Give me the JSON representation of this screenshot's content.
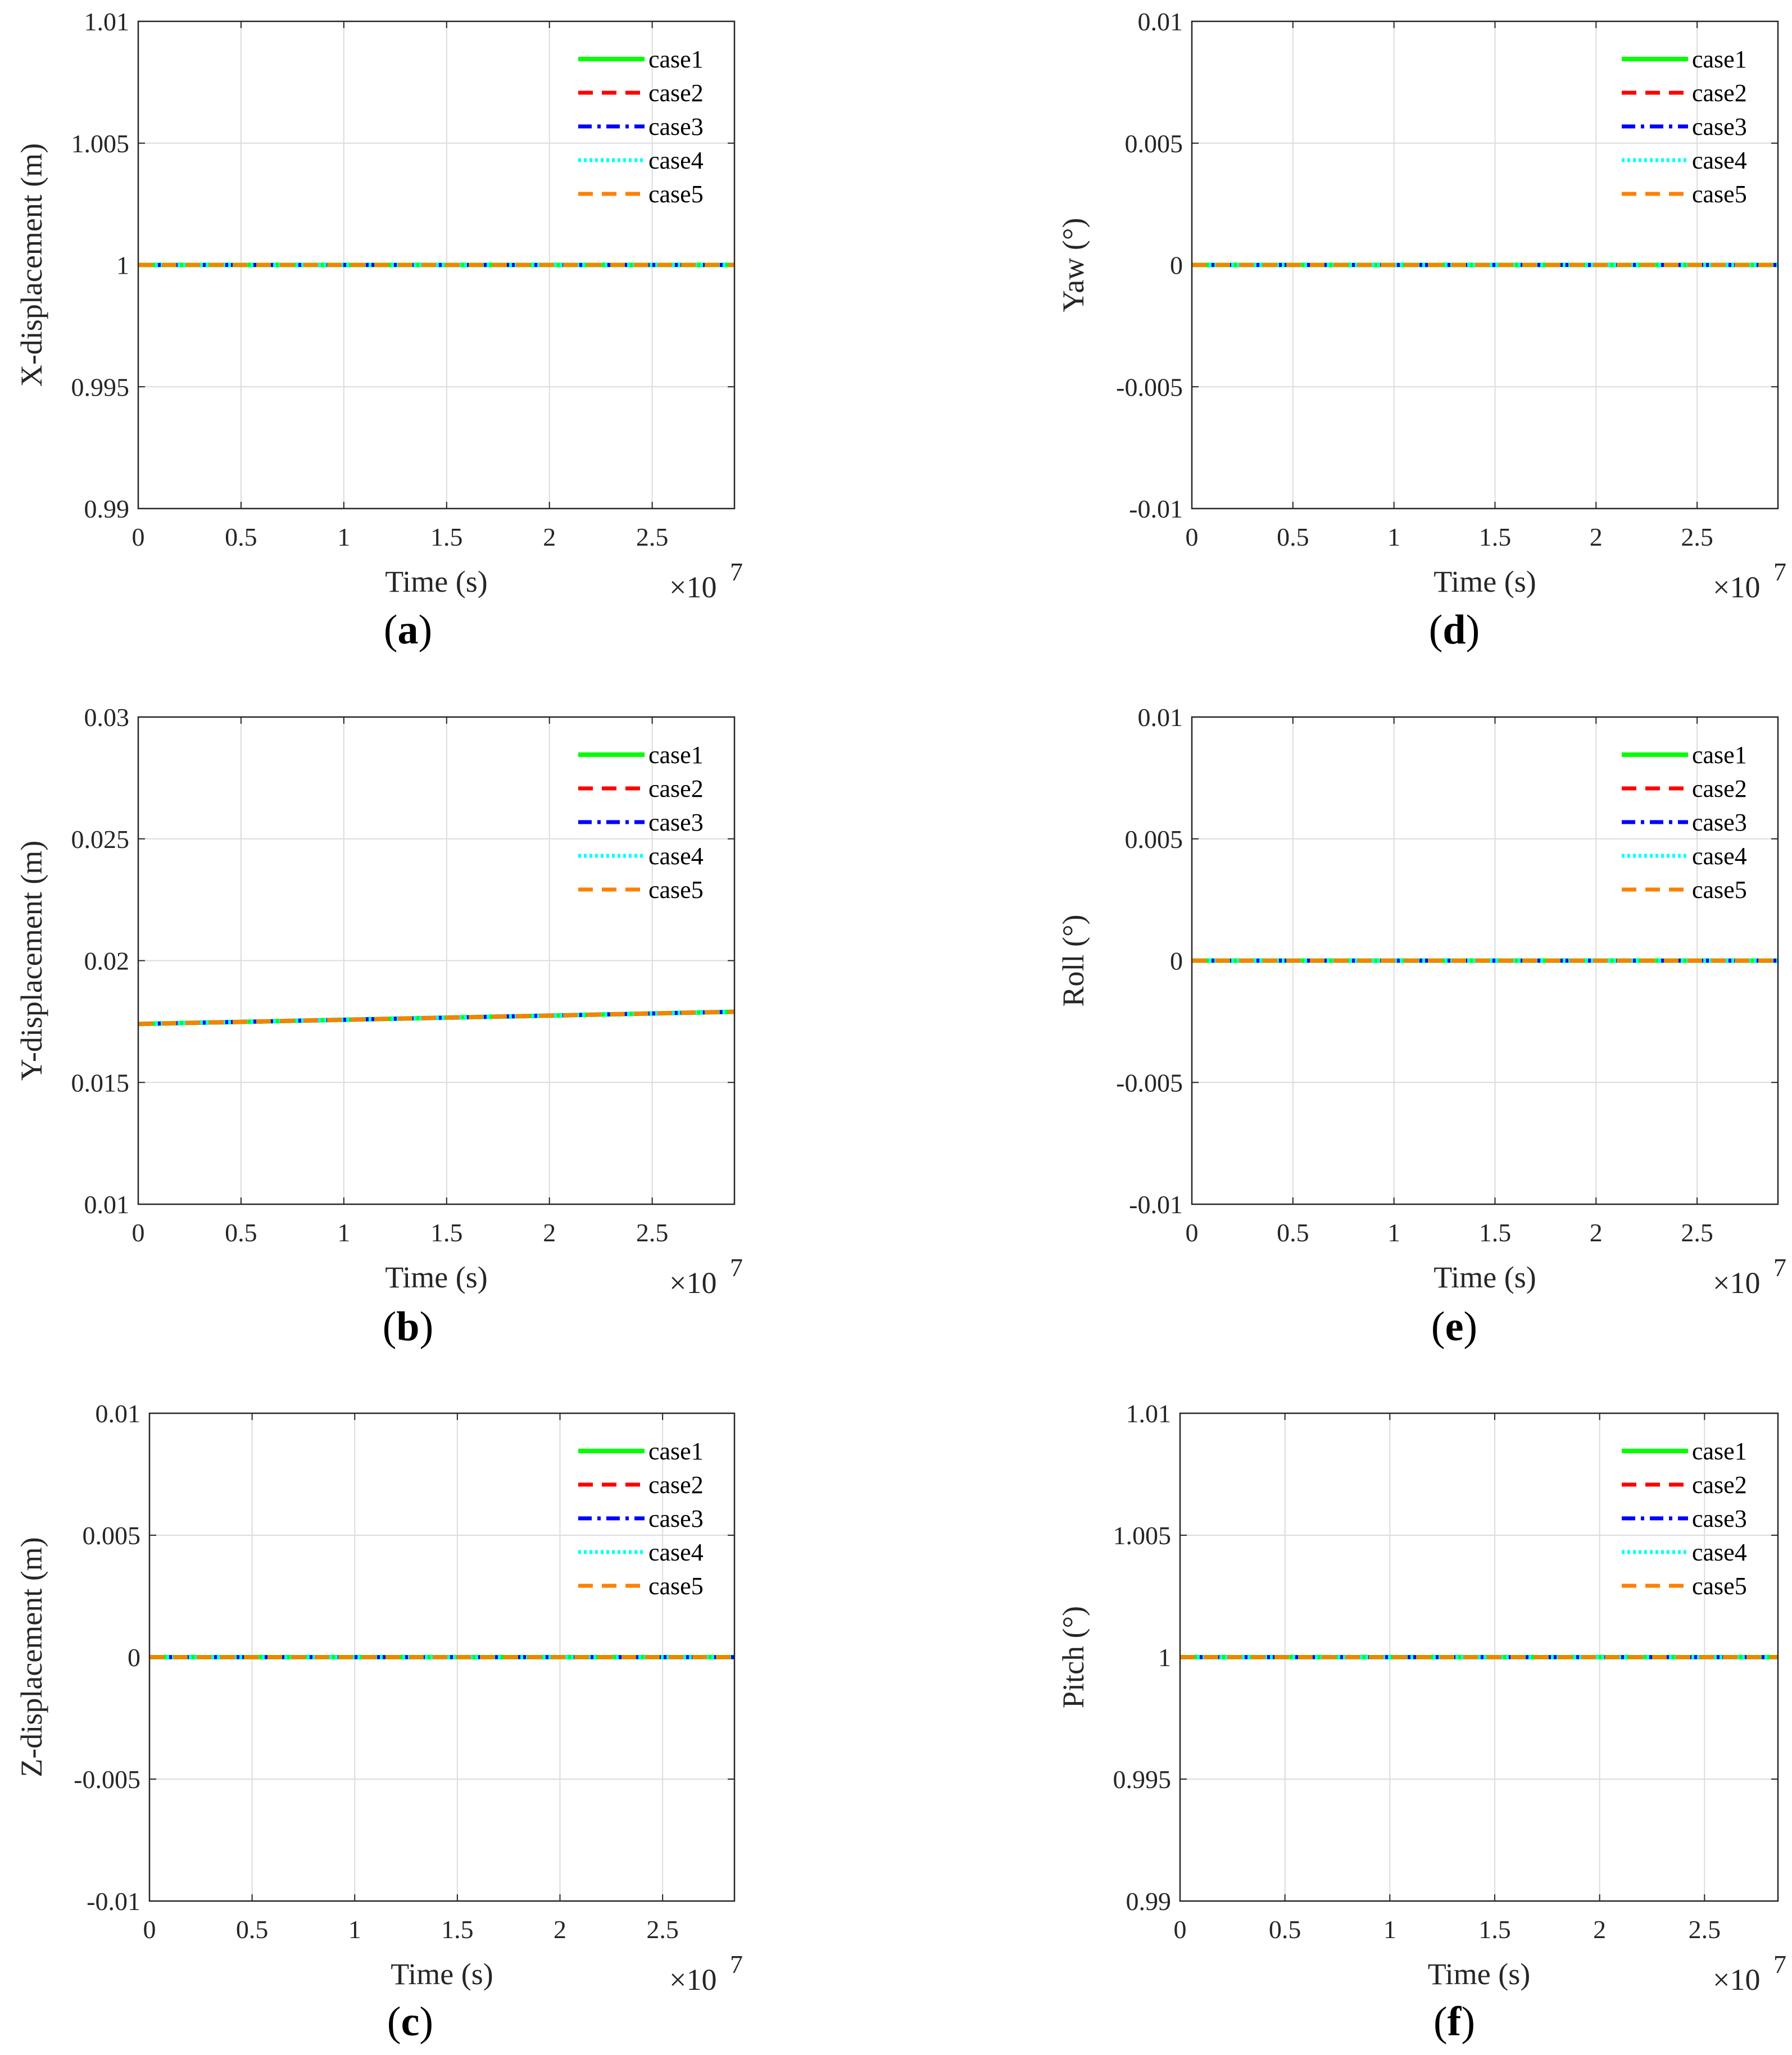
{
  "series_styles": [
    {
      "name": "case1",
      "color": "#00ff00",
      "dash": "solid"
    },
    {
      "name": "case2",
      "color": "#ff0000",
      "dash": "dashed"
    },
    {
      "name": "case3",
      "color": "#0000ff",
      "dash": "dashdot"
    },
    {
      "name": "case4",
      "color": "#00ffff",
      "dash": "dotted"
    },
    {
      "name": "case5",
      "color": "#ff8000",
      "dash": "dashed"
    }
  ],
  "chart_data": [
    {
      "type": "line",
      "panel": "a",
      "panel_label": "a",
      "xlabel": "Time (s)",
      "ylabel": "X-displacement (m)",
      "x_exponent": "×10",
      "x_exponent_power": "7",
      "xlim": [
        0,
        2.9
      ],
      "ylim": [
        0.99,
        1.01
      ],
      "xticks": [
        0,
        0.5,
        1,
        1.5,
        2,
        2.5
      ],
      "xtick_labels": [
        "0",
        "0.5",
        "1",
        "1.5",
        "2",
        "2.5"
      ],
      "yticks": [
        0.99,
        0.995,
        1,
        1.005,
        1.01
      ],
      "ytick_labels": [
        "0.99",
        "0.995",
        "1",
        "1.005",
        "1.01"
      ],
      "grid": true,
      "legend_position": "top-right",
      "series": [
        {
          "name": "case1",
          "x": [
            0,
            2.9
          ],
          "y": [
            1,
            1
          ]
        },
        {
          "name": "case2",
          "x": [
            0,
            2.9
          ],
          "y": [
            1,
            1
          ]
        },
        {
          "name": "case3",
          "x": [
            0,
            2.9
          ],
          "y": [
            1,
            1
          ]
        },
        {
          "name": "case4",
          "x": [
            0,
            2.9
          ],
          "y": [
            1,
            1
          ]
        },
        {
          "name": "case5",
          "x": [
            0,
            2.9
          ],
          "y": [
            1,
            1
          ]
        }
      ]
    },
    {
      "type": "line",
      "panel": "b",
      "panel_label": "b",
      "xlabel": "Time (s)",
      "ylabel": "Y-displacement (m)",
      "x_exponent": "×10",
      "x_exponent_power": "7",
      "xlim": [
        0,
        2.9
      ],
      "ylim": [
        0.01,
        0.03
      ],
      "xticks": [
        0,
        0.5,
        1,
        1.5,
        2,
        2.5
      ],
      "xtick_labels": [
        "0",
        "0.5",
        "1",
        "1.5",
        "2",
        "2.5"
      ],
      "yticks": [
        0.01,
        0.015,
        0.02,
        0.025,
        0.03
      ],
      "ytick_labels": [
        "0.01",
        "0.015",
        "0.02",
        "0.025",
        "0.03"
      ],
      "grid": true,
      "legend_position": "top-right",
      "series": [
        {
          "name": "case1",
          "x": [
            0,
            2.9
          ],
          "y": [
            0.0174,
            0.0179
          ]
        },
        {
          "name": "case2",
          "x": [
            0,
            2.9
          ],
          "y": [
            0.0174,
            0.0179
          ]
        },
        {
          "name": "case3",
          "x": [
            0,
            2.9
          ],
          "y": [
            0.0174,
            0.0179
          ]
        },
        {
          "name": "case4",
          "x": [
            0,
            2.9
          ],
          "y": [
            0.0174,
            0.0179
          ]
        },
        {
          "name": "case5",
          "x": [
            0,
            2.9
          ],
          "y": [
            0.0174,
            0.0179
          ]
        }
      ]
    },
    {
      "type": "line",
      "panel": "c",
      "panel_label": "c",
      "xlabel": "Time (s)",
      "ylabel": "Z-displacement (m)",
      "x_exponent": "×10",
      "x_exponent_power": "7",
      "xlim": [
        0,
        2.85
      ],
      "ylim": [
        -0.01,
        0.01
      ],
      "xticks": [
        0,
        0.5,
        1,
        1.5,
        2,
        2.5
      ],
      "xtick_labels": [
        "0",
        "0.5",
        "1",
        "1.5",
        "2",
        "2.5"
      ],
      "yticks": [
        -0.01,
        -0.005,
        0,
        0.005,
        0.01
      ],
      "ytick_labels": [
        "-0.01",
        "-0.005",
        "0",
        "0.005",
        "0.01"
      ],
      "grid": true,
      "legend_position": "top-right",
      "series": [
        {
          "name": "case1",
          "x": [
            0,
            2.85
          ],
          "y": [
            0,
            0
          ]
        },
        {
          "name": "case2",
          "x": [
            0,
            2.85
          ],
          "y": [
            0,
            0
          ]
        },
        {
          "name": "case3",
          "x": [
            0,
            2.85
          ],
          "y": [
            0,
            0
          ]
        },
        {
          "name": "case4",
          "x": [
            0,
            2.85
          ],
          "y": [
            0,
            0
          ]
        },
        {
          "name": "case5",
          "x": [
            0,
            2.85
          ],
          "y": [
            0,
            0
          ]
        }
      ]
    },
    {
      "type": "line",
      "panel": "d",
      "panel_label": "d",
      "xlabel": "Time (s)",
      "ylabel": "Yaw (°)",
      "x_exponent": "×10",
      "x_exponent_power": "7",
      "xlim": [
        0,
        2.9
      ],
      "ylim": [
        -0.01,
        0.01
      ],
      "xticks": [
        0,
        0.5,
        1,
        1.5,
        2,
        2.5
      ],
      "xtick_labels": [
        "0",
        "0.5",
        "1",
        "1.5",
        "2",
        "2.5"
      ],
      "yticks": [
        -0.01,
        -0.005,
        0,
        0.005,
        0.01
      ],
      "ytick_labels": [
        "-0.01",
        "-0.005",
        "0",
        "0.005",
        "0.01"
      ],
      "grid": true,
      "legend_position": "top-right",
      "series": [
        {
          "name": "case1",
          "x": [
            0,
            2.9
          ],
          "y": [
            0,
            0
          ]
        },
        {
          "name": "case2",
          "x": [
            0,
            2.9
          ],
          "y": [
            0,
            0
          ]
        },
        {
          "name": "case3",
          "x": [
            0,
            2.9
          ],
          "y": [
            0,
            0
          ]
        },
        {
          "name": "case4",
          "x": [
            0,
            2.9
          ],
          "y": [
            0,
            0
          ]
        },
        {
          "name": "case5",
          "x": [
            0,
            2.9
          ],
          "y": [
            0,
            0
          ]
        }
      ]
    },
    {
      "type": "line",
      "panel": "e",
      "panel_label": "e",
      "xlabel": "Time (s)",
      "ylabel": "Roll (°)",
      "x_exponent": "×10",
      "x_exponent_power": "7",
      "xlim": [
        0,
        2.9
      ],
      "ylim": [
        -0.01,
        0.01
      ],
      "xticks": [
        0,
        0.5,
        1,
        1.5,
        2,
        2.5
      ],
      "xtick_labels": [
        "0",
        "0.5",
        "1",
        "1.5",
        "2",
        "2.5"
      ],
      "yticks": [
        -0.01,
        -0.005,
        0,
        0.005,
        0.01
      ],
      "ytick_labels": [
        "-0.01",
        "-0.005",
        "0",
        "0.005",
        "0.01"
      ],
      "grid": true,
      "legend_position": "top-right",
      "series": [
        {
          "name": "case1",
          "x": [
            0,
            2.9
          ],
          "y": [
            0,
            0
          ]
        },
        {
          "name": "case2",
          "x": [
            0,
            2.9
          ],
          "y": [
            0,
            0
          ]
        },
        {
          "name": "case3",
          "x": [
            0,
            2.9
          ],
          "y": [
            0,
            0
          ]
        },
        {
          "name": "case4",
          "x": [
            0,
            2.9
          ],
          "y": [
            0,
            0
          ]
        },
        {
          "name": "case5",
          "x": [
            0,
            2.9
          ],
          "y": [
            0,
            0
          ]
        }
      ]
    },
    {
      "type": "line",
      "panel": "f",
      "panel_label": "f",
      "xlabel": "Time (s)",
      "ylabel": "Pitch (°)",
      "x_exponent": "×10",
      "x_exponent_power": "7",
      "xlim": [
        0,
        2.85
      ],
      "ylim": [
        0.99,
        1.01
      ],
      "xticks": [
        0,
        0.5,
        1,
        1.5,
        2,
        2.5
      ],
      "xtick_labels": [
        "0",
        "0.5",
        "1",
        "1.5",
        "2",
        "2.5"
      ],
      "yticks": [
        0.99,
        0.995,
        1,
        1.005,
        1.01
      ],
      "ytick_labels": [
        "0.99",
        "0.995",
        "1",
        "1.005",
        "1.01"
      ],
      "grid": true,
      "legend_position": "top-right",
      "series": [
        {
          "name": "case1",
          "x": [
            0,
            2.85
          ],
          "y": [
            1,
            1
          ]
        },
        {
          "name": "case2",
          "x": [
            0,
            2.85
          ],
          "y": [
            1,
            1
          ]
        },
        {
          "name": "case3",
          "x": [
            0,
            2.85
          ],
          "y": [
            1,
            1
          ]
        },
        {
          "name": "case4",
          "x": [
            0,
            2.85
          ],
          "y": [
            1,
            1
          ]
        },
        {
          "name": "case5",
          "x": [
            0,
            2.85
          ],
          "y": [
            1,
            1
          ]
        }
      ]
    }
  ]
}
